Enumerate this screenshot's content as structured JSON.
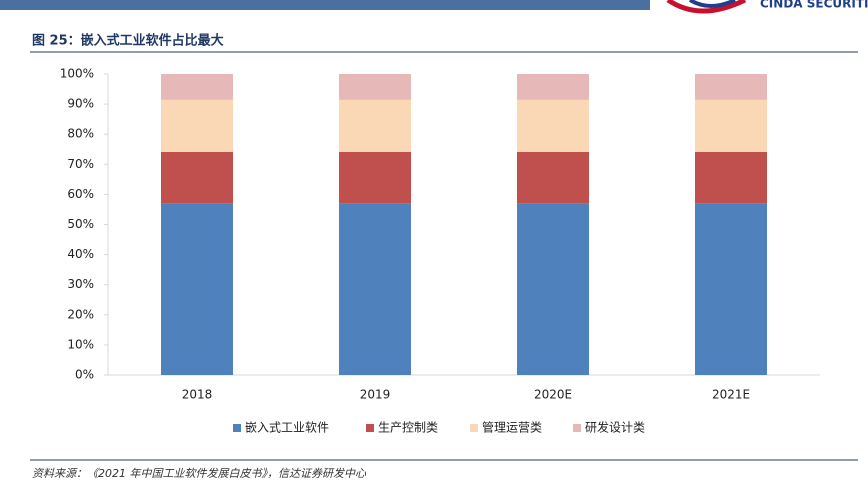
{
  "header": {
    "logo": "CINDA SECURITI"
  },
  "chart_data": {
    "type": "stacked-bar",
    "title": "图 25：嵌入式工业软件占比最大",
    "categories": [
      "2018",
      "2019",
      "2020E",
      "2021E"
    ],
    "series": [
      {
        "name": "嵌入式工业软件",
        "color": "#4f81bd",
        "values": [
          57.1,
          57.1,
          57.1,
          57.1
        ]
      },
      {
        "name": "生产控制类",
        "color": "#c0504d",
        "values": [
          17,
          17,
          17,
          17
        ]
      },
      {
        "name": "管理运营类",
        "color": "#fad7b5",
        "values": [
          17.3,
          17.3,
          17.3,
          17.3
        ]
      },
      {
        "name": "研发设计类",
        "color": "#e6b9b8",
        "values": [
          8.6,
          8.6,
          8.6,
          8.6
        ]
      }
    ],
    "ylim": [
      0,
      100
    ],
    "yticks": [
      {
        "value": 0,
        "label": "0%"
      },
      {
        "value": 10,
        "label": "10%"
      },
      {
        "value": 20,
        "label": "20%"
      },
      {
        "value": 30,
        "label": "30%"
      },
      {
        "value": 40,
        "label": "40%"
      },
      {
        "value": 50,
        "label": "50%"
      },
      {
        "value": 60,
        "label": "60%"
      },
      {
        "value": 70,
        "label": "70%"
      },
      {
        "value": 80,
        "label": "80%"
      },
      {
        "value": 90,
        "label": "90%"
      },
      {
        "value": 100,
        "label": "100%"
      }
    ],
    "legend": "bottom"
  },
  "source": "资料来源：《2021 年中国工业软件发展白皮书》，信达证券研发中心"
}
